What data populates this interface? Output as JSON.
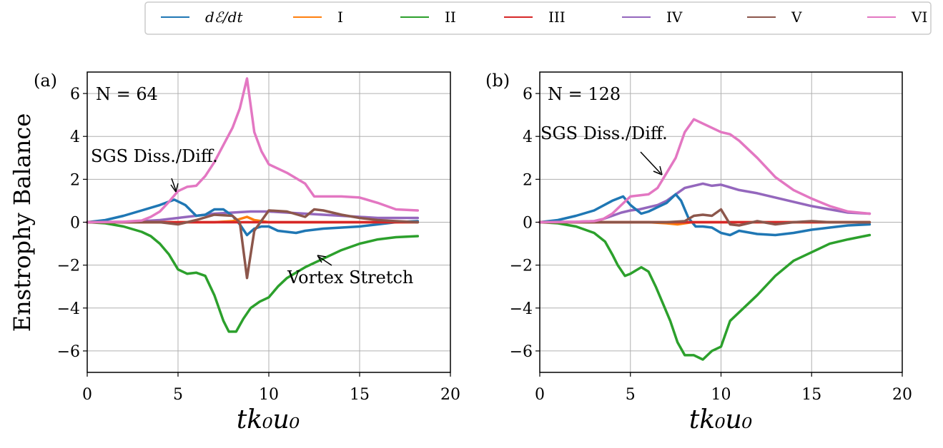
{
  "legend": {
    "entries": [
      {
        "label": "dℰ/dt",
        "color": "#1f77b4"
      },
      {
        "label": "I",
        "color": "#ff7f0e"
      },
      {
        "label": "II",
        "color": "#2ca02c"
      },
      {
        "label": "III",
        "color": "#d62728"
      },
      {
        "label": "IV",
        "color": "#9467bd"
      },
      {
        "label": "V",
        "color": "#8c564b"
      },
      {
        "label": "VI",
        "color": "#e377c2"
      }
    ]
  },
  "chart_data": [
    {
      "type": "line",
      "panel_label": "(a)",
      "annotation_n": "N = 64",
      "annotations": [
        "SGS Diss./Diff.",
        "Vortex Stretch"
      ],
      "xlabel": "tk₀u₀",
      "ylabel": "Enstrophy Balance",
      "xlim": [
        0,
        20
      ],
      "ylim": [
        -7,
        7
      ],
      "xticks": [
        0,
        5,
        10,
        15,
        20
      ],
      "yticks": [
        -6,
        -4,
        -2,
        0,
        2,
        4,
        6
      ],
      "grid": true,
      "series": [
        {
          "name": "dℰ/dt",
          "color": "#1f77b4",
          "x": [
            0,
            1,
            2,
            3,
            4,
            4.8,
            5.4,
            6,
            6.5,
            7,
            7.5,
            8,
            8.4,
            8.8,
            9.2,
            9.6,
            10,
            10.5,
            11,
            11.5,
            12,
            13,
            14,
            15,
            16,
            17,
            18.2
          ],
          "y": [
            0,
            0.1,
            0.3,
            0.55,
            0.8,
            1.05,
            0.8,
            0.3,
            0.35,
            0.6,
            0.6,
            0.3,
            -0.1,
            -0.6,
            -0.3,
            -0.2,
            -0.2,
            -0.4,
            -0.45,
            -0.5,
            -0.4,
            -0.3,
            -0.25,
            -0.2,
            -0.1,
            0,
            0.05
          ]
        },
        {
          "name": "I",
          "color": "#ff7f0e",
          "x": [
            0,
            2,
            4,
            6,
            7,
            8,
            8.4,
            8.8,
            9.2,
            10,
            12,
            14,
            16,
            18.2
          ],
          "y": [
            0,
            0,
            0,
            0,
            0,
            0.05,
            0.15,
            0.25,
            0.1,
            0,
            0,
            0,
            0,
            0
          ]
        },
        {
          "name": "II",
          "color": "#2ca02c",
          "x": [
            0,
            1,
            2,
            3,
            3.5,
            4,
            4.5,
            5,
            5.5,
            6,
            6.5,
            7,
            7.5,
            7.8,
            8.2,
            8.6,
            9,
            9.5,
            10,
            10.5,
            11,
            12,
            13,
            14,
            15,
            16,
            17,
            18.2
          ],
          "y": [
            0,
            -0.05,
            -0.2,
            -0.45,
            -0.65,
            -1.0,
            -1.5,
            -2.2,
            -2.4,
            -2.35,
            -2.5,
            -3.4,
            -4.6,
            -5.1,
            -5.1,
            -4.5,
            -4.0,
            -3.7,
            -3.5,
            -3.0,
            -2.6,
            -2.1,
            -1.7,
            -1.3,
            -1.0,
            -0.8,
            -0.7,
            -0.65
          ]
        },
        {
          "name": "III",
          "color": "#d62728",
          "x": [
            0,
            18.2
          ],
          "y": [
            0,
            0
          ]
        },
        {
          "name": "IV",
          "color": "#9467bd",
          "x": [
            0,
            2,
            3,
            4,
            5,
            6,
            7,
            8,
            9,
            10,
            11,
            12,
            13,
            14,
            15,
            16,
            17,
            18.2
          ],
          "y": [
            0,
            0.02,
            0.05,
            0.1,
            0.2,
            0.3,
            0.4,
            0.45,
            0.5,
            0.5,
            0.45,
            0.4,
            0.35,
            0.3,
            0.25,
            0.2,
            0.2,
            0.2
          ]
        },
        {
          "name": "V",
          "color": "#8c564b",
          "x": [
            0,
            2,
            4,
            5,
            5.5,
            6,
            7,
            8,
            8.4,
            8.8,
            9.2,
            10,
            11,
            12,
            12.5,
            13,
            14,
            15,
            16,
            17,
            18.2
          ],
          "y": [
            0,
            0,
            0,
            -0.1,
            0,
            0.1,
            0.35,
            0.3,
            0,
            -2.6,
            -0.4,
            0.55,
            0.5,
            0.25,
            0.6,
            0.55,
            0.35,
            0.2,
            0.1,
            0.05,
            0
          ]
        },
        {
          "name": "VI",
          "color": "#e377c2",
          "x": [
            0,
            2,
            3,
            3.5,
            4,
            4.5,
            5,
            5.5,
            6,
            6.5,
            7,
            7.5,
            8,
            8.4,
            8.8,
            9.2,
            9.6,
            10,
            11,
            12,
            12.5,
            13,
            14,
            15,
            16,
            17,
            18.2
          ],
          "y": [
            0,
            0.02,
            0.08,
            0.25,
            0.5,
            0.95,
            1.45,
            1.65,
            1.7,
            2.15,
            2.8,
            3.6,
            4.4,
            5.3,
            6.7,
            4.2,
            3.3,
            2.7,
            2.3,
            1.8,
            1.2,
            1.2,
            1.2,
            1.15,
            0.9,
            0.6,
            0.55
          ]
        }
      ]
    },
    {
      "type": "line",
      "panel_label": "(b)",
      "annotation_n": "N = 128",
      "annotations": [
        "SGS Diss./Diff."
      ],
      "xlabel": "tk₀u₀",
      "ylabel": "",
      "xlim": [
        0,
        20
      ],
      "ylim": [
        -7,
        7
      ],
      "xticks": [
        0,
        5,
        10,
        15,
        20
      ],
      "yticks": [
        -6,
        -4,
        -2,
        0,
        2,
        4,
        6
      ],
      "grid": true,
      "series": [
        {
          "name": "dℰ/dt",
          "color": "#1f77b4",
          "x": [
            0,
            1,
            2,
            3,
            4,
            4.6,
            5,
            5.6,
            6,
            6.5,
            7,
            7.5,
            7.8,
            8.2,
            8.6,
            9,
            9.5,
            10,
            10.5,
            11,
            12,
            13,
            14,
            15,
            16,
            17,
            18.2
          ],
          "y": [
            0,
            0.1,
            0.3,
            0.55,
            1.0,
            1.2,
            0.8,
            0.4,
            0.5,
            0.7,
            0.9,
            1.3,
            1.0,
            0.2,
            -0.2,
            -0.2,
            -0.25,
            -0.5,
            -0.6,
            -0.4,
            -0.55,
            -0.6,
            -0.5,
            -0.35,
            -0.25,
            -0.15,
            -0.1
          ]
        },
        {
          "name": "I",
          "color": "#ff7f0e",
          "x": [
            0,
            4,
            6,
            7,
            7.6,
            8,
            8.4,
            9,
            10,
            12,
            14,
            16,
            18.2
          ],
          "y": [
            0,
            0,
            0,
            -0.05,
            -0.1,
            -0.05,
            0,
            0,
            0,
            0,
            0,
            0,
            0
          ]
        },
        {
          "name": "II",
          "color": "#2ca02c",
          "x": [
            0,
            1,
            2,
            3,
            3.6,
            4,
            4.3,
            4.7,
            5,
            5.6,
            6,
            6.4,
            6.8,
            7.2,
            7.6,
            8,
            8.5,
            9,
            9.5,
            10,
            10.5,
            11,
            12,
            13,
            14,
            15,
            16,
            17,
            18.2
          ],
          "y": [
            0,
            -0.05,
            -0.2,
            -0.5,
            -0.9,
            -1.5,
            -2.0,
            -2.5,
            -2.4,
            -2.1,
            -2.3,
            -3.0,
            -3.8,
            -4.6,
            -5.6,
            -6.2,
            -6.2,
            -6.4,
            -6.0,
            -5.8,
            -4.6,
            -4.2,
            -3.4,
            -2.5,
            -1.8,
            -1.4,
            -1.0,
            -0.8,
            -0.6
          ]
        },
        {
          "name": "III",
          "color": "#d62728",
          "x": [
            0,
            18.2
          ],
          "y": [
            0,
            0
          ]
        },
        {
          "name": "IV",
          "color": "#9467bd",
          "x": [
            0,
            2,
            3,
            3.5,
            4,
            4.5,
            5,
            5.5,
            6,
            6.5,
            7,
            7.5,
            8,
            8.5,
            9,
            9.5,
            10,
            11,
            12,
            13,
            14,
            15,
            16,
            17,
            18.2
          ],
          "y": [
            0,
            0.02,
            0.05,
            0.15,
            0.3,
            0.45,
            0.55,
            0.6,
            0.7,
            0.8,
            1.0,
            1.3,
            1.6,
            1.7,
            1.8,
            1.7,
            1.75,
            1.5,
            1.35,
            1.15,
            0.95,
            0.75,
            0.6,
            0.45,
            0.4
          ]
        },
        {
          "name": "V",
          "color": "#8c564b",
          "x": [
            0,
            2,
            4,
            6,
            7,
            8,
            8.5,
            9,
            9.5,
            10,
            10.5,
            11,
            12,
            13,
            14,
            15,
            16,
            18.2
          ],
          "y": [
            0,
            0,
            0,
            0,
            0,
            0.05,
            0.3,
            0.35,
            0.3,
            0.6,
            -0.1,
            -0.15,
            0.05,
            -0.1,
            0,
            0.05,
            0,
            0
          ]
        },
        {
          "name": "VI",
          "color": "#e377c2",
          "x": [
            0,
            2,
            3,
            3.5,
            4,
            4.5,
            5,
            5.5,
            6,
            6.5,
            7,
            7.5,
            8,
            8.5,
            9,
            9.5,
            10,
            10.5,
            11,
            12,
            13,
            14,
            15,
            16,
            17,
            18.2
          ],
          "y": [
            0,
            0.02,
            0.05,
            0.15,
            0.4,
            0.8,
            1.2,
            1.25,
            1.3,
            1.6,
            2.3,
            3.0,
            4.2,
            4.8,
            4.6,
            4.4,
            4.2,
            4.1,
            3.8,
            3.0,
            2.1,
            1.5,
            1.1,
            0.75,
            0.5,
            0.4
          ]
        }
      ]
    }
  ]
}
